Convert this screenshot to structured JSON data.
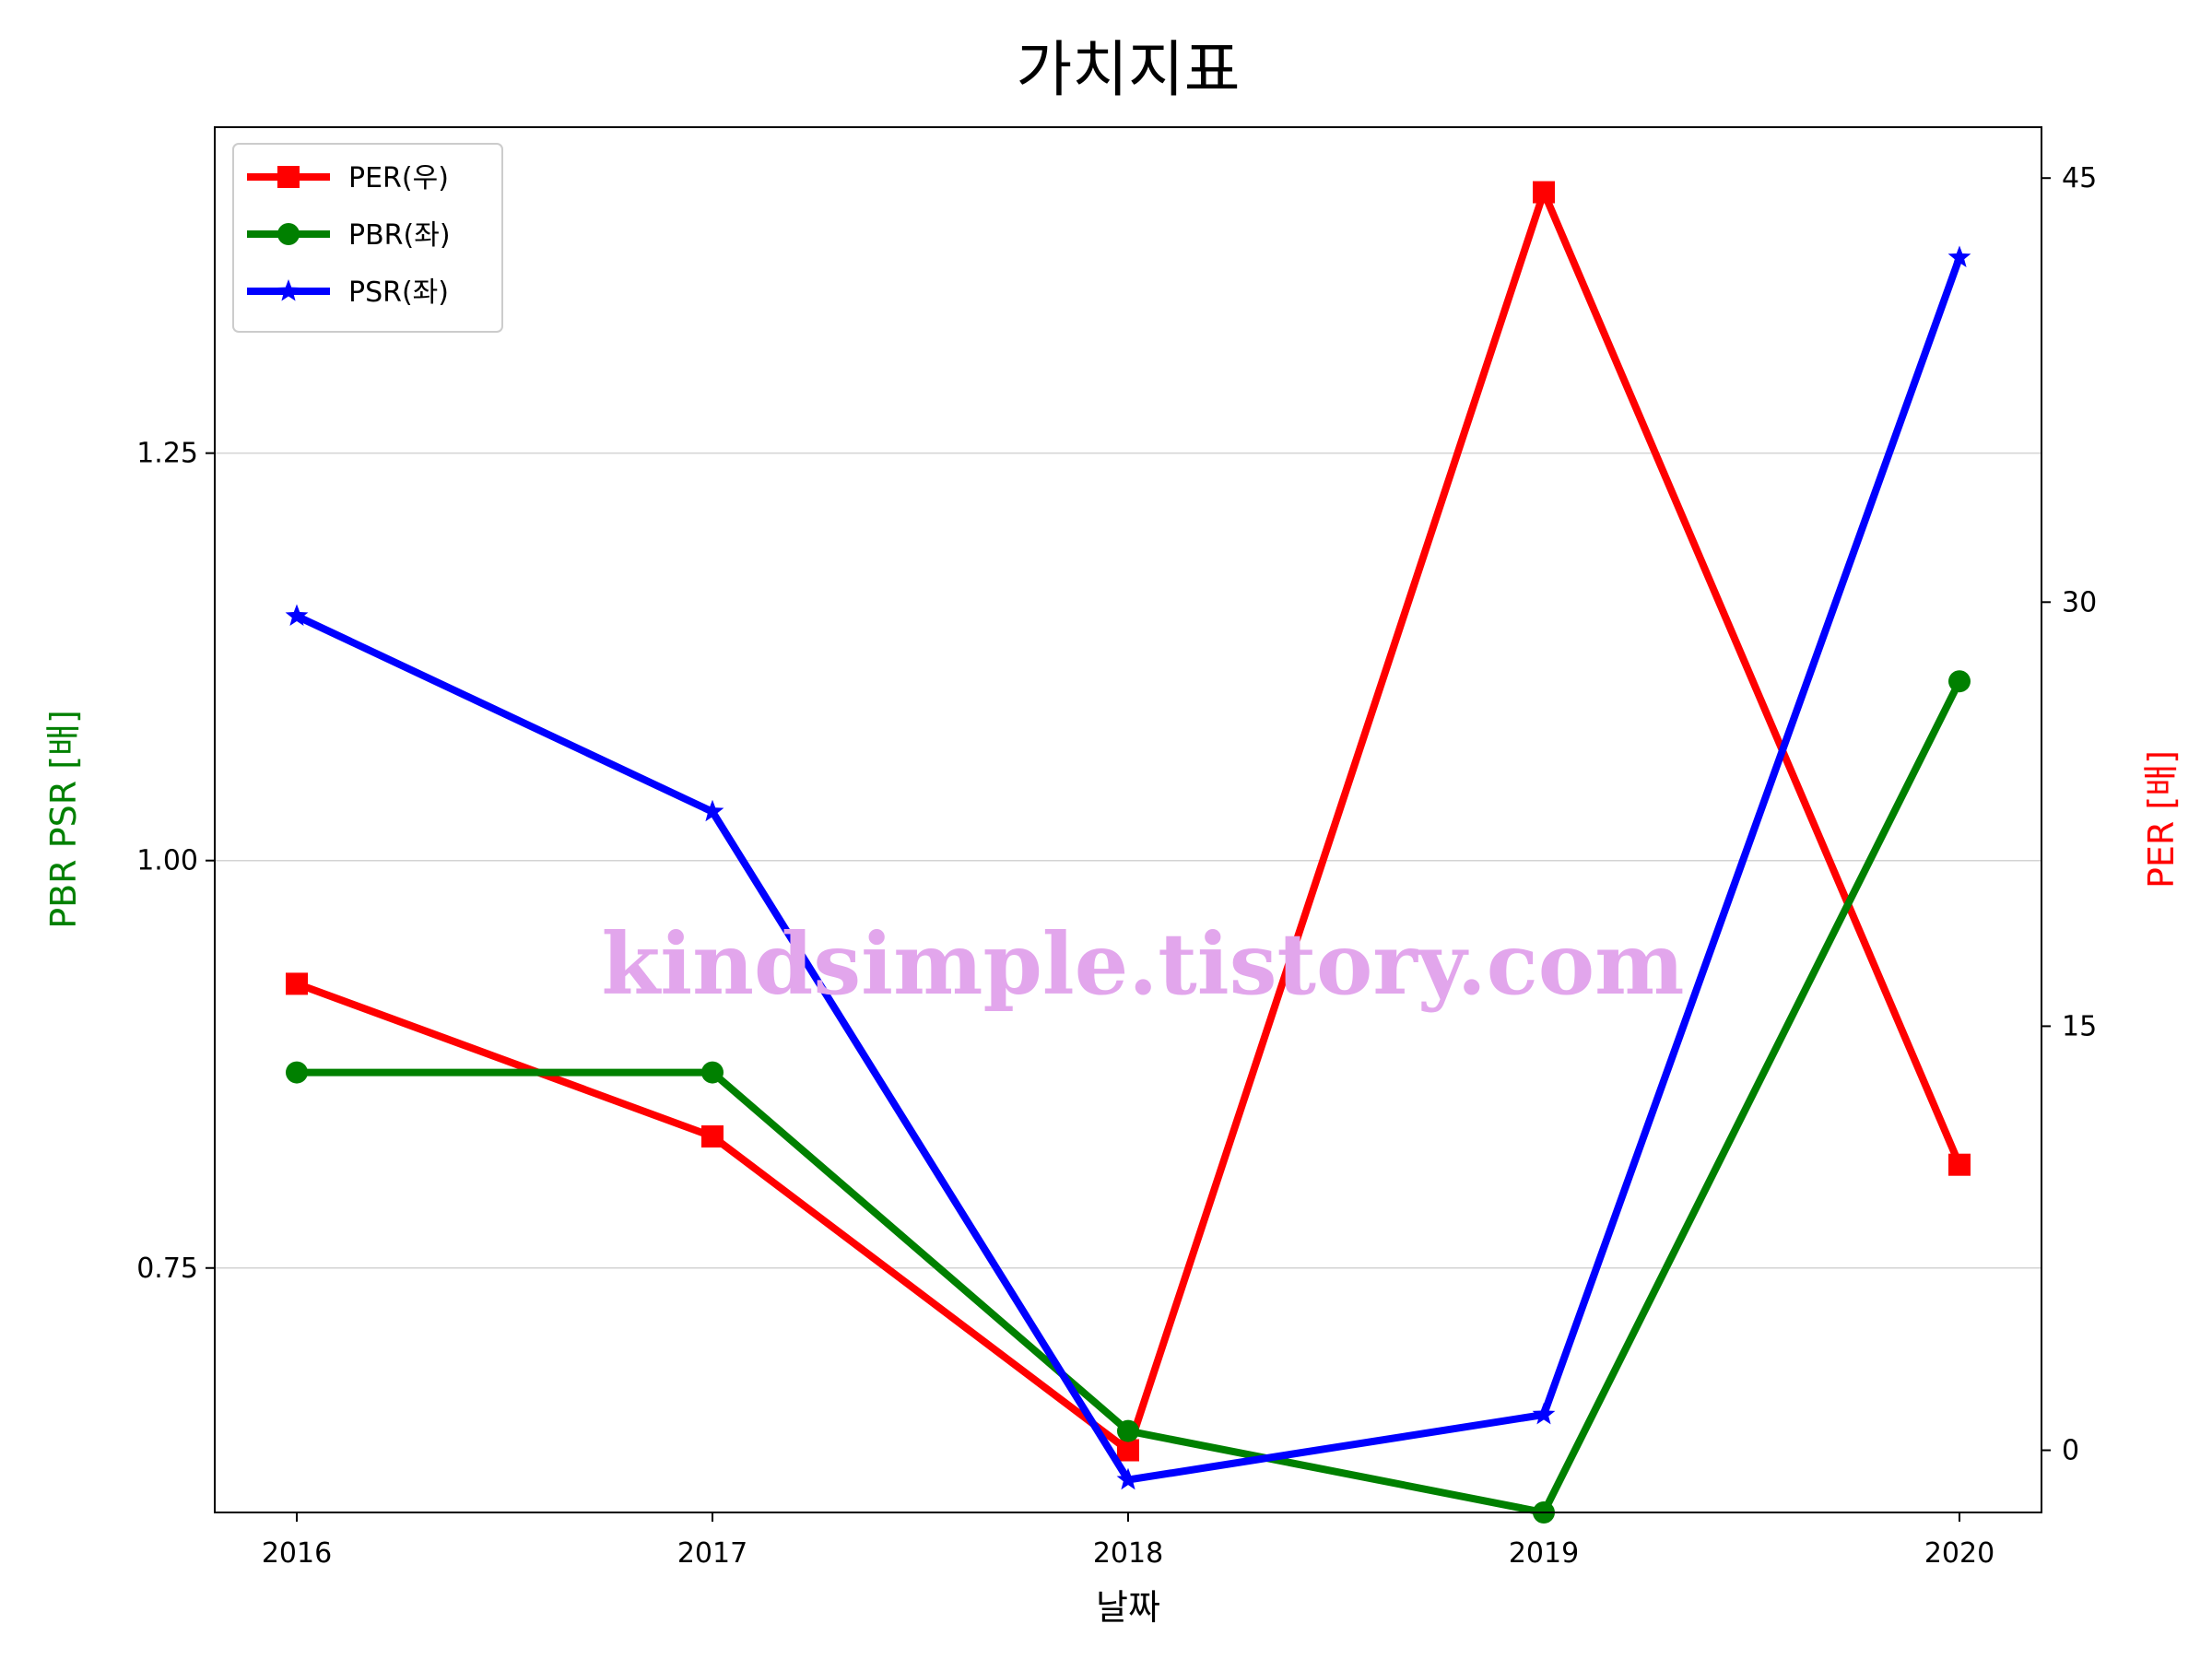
{
  "chart_data": {
    "type": "line",
    "title": "가치지표",
    "xlabel": "날짜",
    "ylabel_left": "PBR PSR [배]",
    "ylabel_right": "PER [배]",
    "categories": [
      "2016",
      "2017",
      "2018",
      "2019",
      "2020"
    ],
    "left_axis": {
      "ylim": [
        0.6,
        1.45
      ],
      "ticks": [
        0.75,
        1.0,
        1.25
      ],
      "tick_labels": [
        "0.75",
        "1.00",
        "1.25"
      ],
      "label_color": "#008000"
    },
    "right_axis": {
      "ylim": [
        -2.2,
        46.8
      ],
      "ticks": [
        0,
        15,
        30,
        45
      ],
      "tick_labels": [
        "0",
        "15",
        "30",
        "45"
      ],
      "label_color": "#ff0000"
    },
    "grid": "horizontal-left-axis",
    "legend_position": "top-left",
    "series": [
      {
        "name": "PER(우)",
        "axis": "right",
        "color": "#ff0000",
        "marker": "square",
        "values": [
          16.5,
          11.1,
          0.0,
          44.5,
          10.1
        ]
      },
      {
        "name": "PBR(좌)",
        "axis": "left",
        "color": "#008000",
        "marker": "circle",
        "values": [
          0.87,
          0.87,
          0.65,
          0.6,
          1.11
        ]
      },
      {
        "name": "PSR(좌)",
        "axis": "left",
        "color": "#0000ff",
        "marker": "star",
        "values": [
          1.15,
          1.03,
          0.62,
          0.66,
          1.37
        ]
      }
    ],
    "watermark": "kindsimple.tistory.com"
  }
}
